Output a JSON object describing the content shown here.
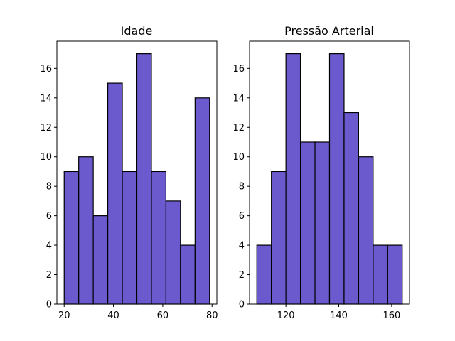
{
  "chart_data": [
    {
      "type": "bar",
      "title": "Idade",
      "xlabel": "",
      "ylabel": "",
      "bin_edges": [
        20,
        25.9,
        31.8,
        37.7,
        43.6,
        49.5,
        55.4,
        61.3,
        67.2,
        73.1,
        79
      ],
      "values": [
        9,
        10,
        6,
        15,
        9,
        17,
        9,
        7,
        4,
        14
      ],
      "xlim": [
        17.05,
        81.95
      ],
      "ylim": [
        0,
        17.85
      ],
      "xticks": [
        20,
        40,
        60,
        80
      ],
      "yticks": [
        0,
        2,
        4,
        6,
        8,
        10,
        12,
        14,
        16
      ],
      "bar_color": "#6a5acd",
      "edge_color": "#000000",
      "grid": false
    },
    {
      "type": "bar",
      "title": "Pressão Arterial",
      "xlabel": "",
      "ylabel": "",
      "bin_edges": [
        109,
        114.5,
        120,
        125.5,
        131,
        136.5,
        142,
        147.5,
        153,
        158.5,
        164
      ],
      "values": [
        4,
        9,
        17,
        11,
        11,
        17,
        13,
        10,
        4,
        4
      ],
      "xlim": [
        106.25,
        166.75
      ],
      "ylim": [
        0,
        17.85
      ],
      "xticks": [
        120,
        140,
        160
      ],
      "yticks": [
        0,
        2,
        4,
        6,
        8,
        10,
        12,
        14,
        16
      ],
      "bar_color": "#6a5acd",
      "edge_color": "#000000",
      "grid": false
    }
  ]
}
